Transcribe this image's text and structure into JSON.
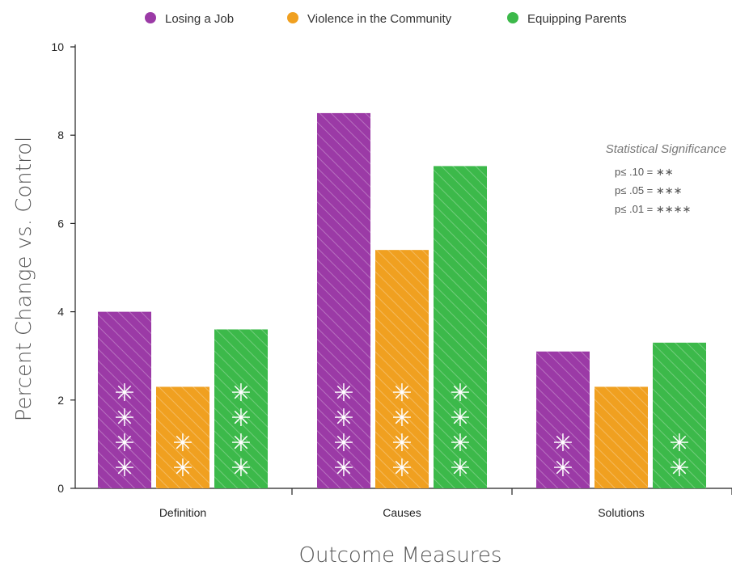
{
  "chart_data": {
    "type": "bar",
    "categories": [
      "Definition",
      "Causes",
      "Solutions"
    ],
    "series": [
      {
        "name": "Losing a Job",
        "color": "#9b3aa6",
        "values": [
          4.0,
          8.5,
          3.1
        ],
        "stars": [
          4,
          4,
          2
        ]
      },
      {
        "name": "Violence in the Community",
        "color": "#f0a020",
        "values": [
          2.3,
          5.4,
          2.3
        ],
        "stars": [
          2,
          4,
          0
        ]
      },
      {
        "name": "Equipping Parents",
        "color": "#3cb94a",
        "values": [
          3.6,
          7.3,
          3.3
        ],
        "stars": [
          4,
          4,
          2
        ]
      }
    ],
    "ylabel": "Percent Change vs. Control",
    "xlabel": "Outcome Measures",
    "ylim": [
      0,
      10
    ],
    "yticks": [
      "0",
      "2",
      "4",
      "6",
      "8",
      "10"
    ],
    "legend_position": "top-center",
    "bar_pattern": "diagonal-hatch",
    "significance": {
      "title": "Statistical Significance",
      "lines": [
        "p≤ .10 = ∗∗",
        "p≤ .05 = ∗∗∗",
        "p≤ .01 = ∗∗∗∗"
      ]
    },
    "star_glyph": "✳"
  }
}
